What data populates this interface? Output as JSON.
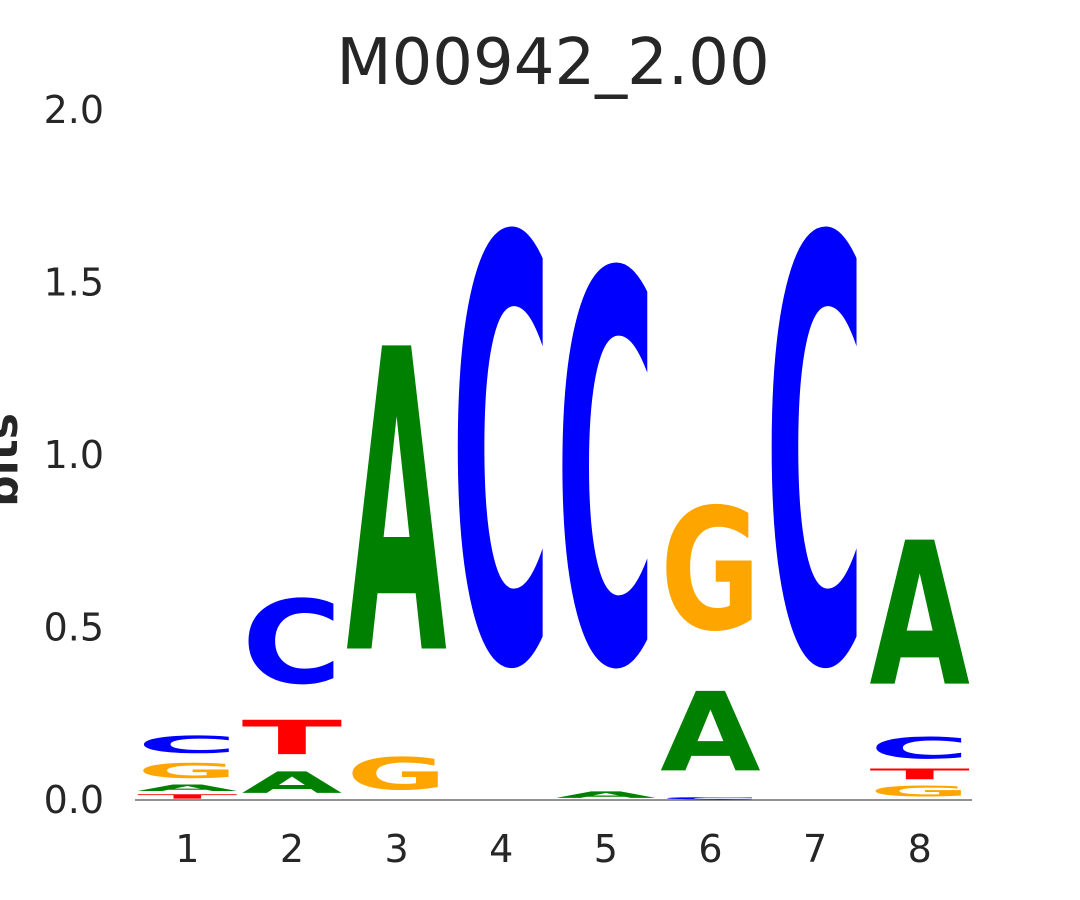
{
  "chart_data": {
    "type": "sequence-logo",
    "title": "M00942_2.00",
    "ylabel": "bits",
    "ylim": [
      0,
      2.0
    ],
    "yticks": [
      "0.0",
      "0.5",
      "1.0",
      "1.5",
      "2.0"
    ],
    "ytick_values": [
      0.0,
      0.5,
      1.0,
      1.5,
      2.0
    ],
    "colors": {
      "A": "#008000",
      "C": "#0000ff",
      "G": "#ffa500",
      "T": "#ff0000"
    },
    "positions": [
      {
        "label": "1",
        "stack": [
          {
            "base": "T",
            "bits": 0.02
          },
          {
            "base": "A",
            "bits": 0.03
          },
          {
            "base": "G",
            "bits": 0.07
          },
          {
            "base": "C",
            "bits": 0.08
          }
        ]
      },
      {
        "label": "2",
        "stack": [
          {
            "base": "A",
            "bits": 0.1
          },
          {
            "base": "T",
            "bits": 0.16
          },
          {
            "base": "C",
            "bits": 0.39
          }
        ]
      },
      {
        "label": "3",
        "stack": [
          {
            "base": "G",
            "bits": 0.15
          },
          {
            "base": "A",
            "bits": 1.41
          }
        ]
      },
      {
        "label": "4",
        "stack": [
          {
            "base": "C",
            "bits": 1.98
          }
        ]
      },
      {
        "label": "5",
        "stack": [
          {
            "base": "A",
            "bits": 0.03
          },
          {
            "base": "C",
            "bits": 1.82
          }
        ]
      },
      {
        "label": "6",
        "stack": [
          {
            "base": "C",
            "bits": 0.01
          },
          {
            "base": "A",
            "bits": 0.37
          },
          {
            "base": "G",
            "bits": 0.57
          }
        ]
      },
      {
        "label": "7",
        "stack": [
          {
            "base": "C",
            "bits": 1.98
          }
        ]
      },
      {
        "label": "8",
        "stack": [
          {
            "base": "G",
            "bits": 0.05
          },
          {
            "base": "T",
            "bits": 0.05
          },
          {
            "base": "C",
            "bits": 0.1
          },
          {
            "base": "A",
            "bits": 0.67
          }
        ]
      }
    ]
  }
}
